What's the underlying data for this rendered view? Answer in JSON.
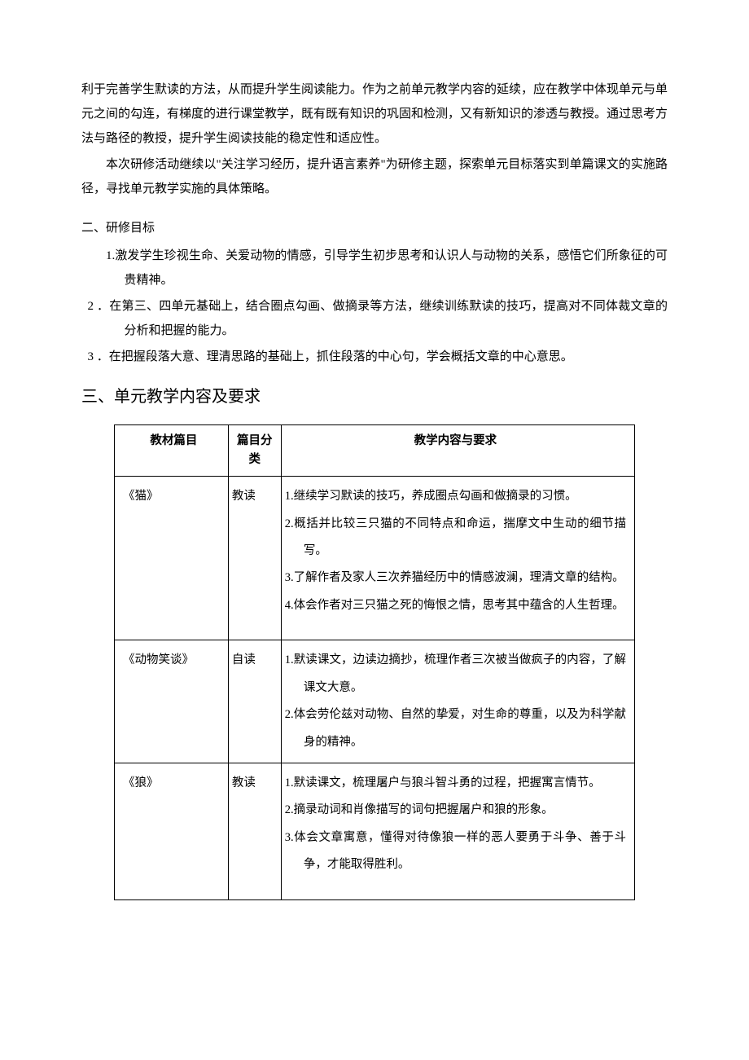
{
  "intro": {
    "p1": "利于完善学生默读的方法，从而提升学生阅读能力。作为之前单元教学内容的延续，应在教学中体现单元与单元之间的勾连，有梯度的进行课堂教学，既有既有知识的巩固和检测，又有新知识的渗透与教授。通过思考方法与路径的教授，提升学生阅读技能的稳定性和适应性。",
    "p2": "本次研修活动继续以\"关注学习经历，提升语言素养\"为研修主题，探索单元目标落实到单篇课文的实施路径，寻找单元教学实施的具体策略。"
  },
  "section2": {
    "label": "二、研修目标",
    "items": [
      "1.激发学生珍视生命、关爱动物的情感，引导学生初步思考和认识人与动物的关系，感悟它们所象征的可贵精神。",
      "2 ．在第三、四单元基础上，结合圈点勾画、做摘录等方法，继续训练默读的技巧，提高对不同体裁文章的分析和把握的能力。",
      "3 ．在把握段落大意、理清思路的基础上，抓住段落的中心句，学会概括文章的中心意思。"
    ]
  },
  "section3": {
    "heading": "三、单元教学内容及要求",
    "table": {
      "headers": [
        "教材篇目",
        "篇目分类",
        "教学内容与要求"
      ],
      "rows": [
        {
          "title": "《猫》",
          "type": "教读",
          "reqs": [
            "1.继续学习默读的技巧，养成圈点勾画和做摘录的习惯。",
            "2.概括并比较三只猫的不同特点和命运，揣摩文中生动的细节描写。",
            "3.了解作者及家人三次养猫经历中的情感波澜，理清文章的结构。",
            "4.体会作者对三只猫之死的悔恨之情，思考其中蕴含的人生哲理。"
          ],
          "trailing_space": true
        },
        {
          "title": "《动物笑谈》",
          "type": "自读",
          "reqs": [
            "1.默读课文，边读边摘抄，梳理作者三次被当做疯子的内容，了解课文大意。",
            "2.体会劳伦兹对动物、自然的挚爱，对生命的尊重，以及为科学献身的精神。"
          ],
          "trailing_space": false
        },
        {
          "title": "《狼》",
          "type": "教读",
          "reqs": [
            "1.默读课文，梳理屠户与狼斗智斗勇的过程，把握寓言情节。",
            "2.摘录动词和肖像描写的词句把握屠户和狼的形象。",
            "3.体会文章寓意，懂得对待像狼一样的恶人要勇于斗争、善于斗争，才能取得胜利。"
          ],
          "trailing_space": true
        }
      ]
    }
  }
}
